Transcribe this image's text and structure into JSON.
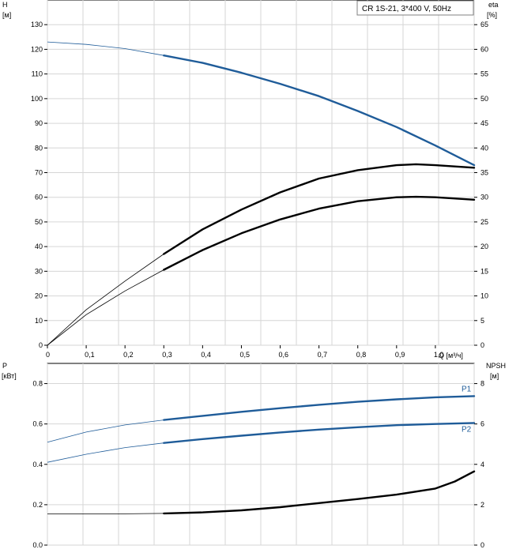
{
  "chart_data": [
    {
      "type": "line",
      "legend": "CR 1S-21, 3*400 V, 50Hz",
      "ylabel_left": "H",
      "ylabel_left_unit": "[м]",
      "ylabel_right": "eta",
      "ylabel_right_unit": "[%]",
      "xlabel": "Q [м³/ч]",
      "x_ticks": [
        "0",
        "0,1",
        "0,2",
        "0,3",
        "0,4",
        "0,5",
        "0,6",
        "0,7",
        "0,8",
        "0,9",
        "1,0"
      ],
      "y_left_ticks": [
        "0",
        "10",
        "20",
        "30",
        "40",
        "50",
        "60",
        "70",
        "80",
        "90",
        "100",
        "110",
        "120",
        "130"
      ],
      "y_right_ticks": [
        "0",
        "5",
        "10",
        "15",
        "20",
        "25",
        "30",
        "35",
        "40",
        "45",
        "50",
        "55",
        "60",
        "65"
      ],
      "xlim": [
        0,
        1.1
      ],
      "ylim_left": [
        0,
        140
      ],
      "ylim_right": [
        0,
        70
      ],
      "grid": true,
      "series": [
        {
          "color": "#1f5c99",
          "axis": "left",
          "operating_range": [
            0.3,
            1.1
          ],
          "x": [
            0,
            0.1,
            0.2,
            0.3,
            0.4,
            0.5,
            0.6,
            0.7,
            0.8,
            0.9,
            1.0,
            1.1
          ],
          "y": [
            123,
            122,
            120.3,
            117.5,
            114.5,
            110.5,
            106,
            101,
            95,
            88.5,
            81,
            73
          ]
        },
        {
          "color": "#000000",
          "axis": "right",
          "operating_range": [
            0.3,
            1.1
          ],
          "x": [
            0,
            0.1,
            0.2,
            0.3,
            0.4,
            0.5,
            0.6,
            0.7,
            0.8,
            0.9,
            0.95,
            1.0,
            1.1
          ],
          "y": [
            0,
            7.2,
            13,
            18.5,
            23.5,
            27.5,
            31,
            33.8,
            35.5,
            36.5,
            36.7,
            36.5,
            36
          ]
        },
        {
          "color": "#000000",
          "axis": "right",
          "operating_range": [
            0.3,
            1.1
          ],
          "x": [
            0,
            0.1,
            0.2,
            0.3,
            0.4,
            0.5,
            0.6,
            0.7,
            0.8,
            0.9,
            0.95,
            1.0,
            1.1
          ],
          "y": [
            0,
            6.2,
            11,
            15.3,
            19.3,
            22.7,
            25.5,
            27.7,
            29.2,
            30,
            30.1,
            30,
            29.5
          ]
        }
      ]
    },
    {
      "type": "line",
      "ylabel_left": "P",
      "ylabel_left_unit": "[кВт]",
      "ylabel_right": "NPSH",
      "ylabel_right_unit": "[м]",
      "y_left_ticks": [
        "0.0",
        "0.2",
        "0.4",
        "0.6",
        "0.8"
      ],
      "y_right_ticks": [
        "0",
        "2",
        "4",
        "6",
        "8"
      ],
      "xlim": [
        0,
        1.1
      ],
      "ylim_left": [
        0,
        0.9
      ],
      "ylim_right": [
        0,
        9
      ],
      "grid": true,
      "series": [
        {
          "name": "P1",
          "color": "#1f5c99",
          "axis": "left",
          "operating_range": [
            0.3,
            1.1
          ],
          "x": [
            0,
            0.1,
            0.2,
            0.3,
            0.4,
            0.5,
            0.6,
            0.7,
            0.8,
            0.9,
            1.0,
            1.1
          ],
          "y": [
            0.51,
            0.56,
            0.595,
            0.62,
            0.64,
            0.66,
            0.678,
            0.695,
            0.71,
            0.722,
            0.732,
            0.738
          ]
        },
        {
          "name": "P2",
          "color": "#1f5c99",
          "axis": "left",
          "operating_range": [
            0.3,
            1.1
          ],
          "x": [
            0,
            0.1,
            0.2,
            0.3,
            0.4,
            0.5,
            0.6,
            0.7,
            0.8,
            0.9,
            1.0,
            1.1
          ],
          "y": [
            0.41,
            0.45,
            0.483,
            0.506,
            0.525,
            0.542,
            0.558,
            0.572,
            0.584,
            0.594,
            0.6,
            0.605
          ]
        },
        {
          "color": "#000000",
          "axis": "right",
          "operating_range": [
            0.3,
            1.1
          ],
          "x": [
            0,
            0.1,
            0.2,
            0.3,
            0.4,
            0.5,
            0.6,
            0.7,
            0.8,
            0.9,
            1.0,
            1.05,
            1.1
          ],
          "y": [
            1.55,
            1.55,
            1.55,
            1.57,
            1.62,
            1.72,
            1.88,
            2.08,
            2.28,
            2.5,
            2.8,
            3.15,
            3.65
          ]
        }
      ]
    }
  ]
}
